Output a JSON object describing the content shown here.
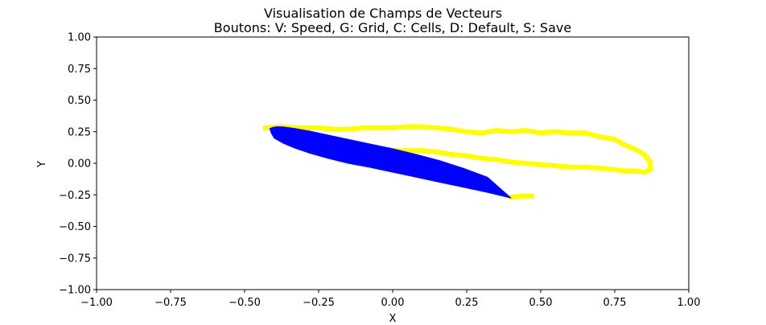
{
  "chart_data": {
    "type": "line",
    "title": "Visualisation de Champs de Vecteurs",
    "subtitle": "Boutons: V: Speed, G: Grid, C: Cells, D: Default, S: Save",
    "xlabel": "X",
    "ylabel": "Y",
    "xlim": [
      -1.0,
      1.0
    ],
    "ylim": [
      -1.0,
      1.0
    ],
    "xticks": [
      -1.0,
      -0.75,
      -0.5,
      -0.25,
      0.0,
      0.25,
      0.5,
      0.75,
      1.0
    ],
    "yticks": [
      -1.0,
      -0.75,
      -0.5,
      -0.25,
      0.0,
      0.25,
      0.5,
      0.75,
      1.0
    ],
    "xtick_labels": [
      "−1.00",
      "−0.75",
      "−0.50",
      "−0.25",
      "0.00",
      "0.25",
      "0.50",
      "0.75",
      "1.00"
    ],
    "ytick_labels": [
      "−1.00",
      "−0.75",
      "−0.50",
      "−0.25",
      "0.00",
      "0.25",
      "0.50",
      "0.75",
      "1.00"
    ],
    "grid": false,
    "series": [
      {
        "kind": "trail",
        "color": "#ffff00",
        "x": [
          -0.43,
          -0.38,
          -0.3,
          -0.25,
          -0.2,
          -0.15,
          -0.1,
          -0.05,
          0.0,
          0.05,
          0.1,
          0.15,
          0.2,
          0.25,
          0.3,
          0.35,
          0.4,
          0.45,
          0.5,
          0.55,
          0.6,
          0.65,
          0.7,
          0.75,
          0.78,
          0.82,
          0.85,
          0.87,
          0.87,
          0.85,
          0.82,
          0.78,
          0.75,
          0.7,
          0.65,
          0.6,
          0.55,
          0.5,
          0.45,
          0.4,
          0.35,
          0.3,
          0.25,
          0.2,
          0.15,
          0.1,
          0.05,
          0.0,
          -0.05,
          -0.08
        ],
        "y": [
          0.28,
          0.29,
          0.28,
          0.28,
          0.27,
          0.27,
          0.28,
          0.28,
          0.28,
          0.29,
          0.29,
          0.28,
          0.27,
          0.25,
          0.24,
          0.26,
          0.25,
          0.26,
          0.24,
          0.25,
          0.24,
          0.24,
          0.21,
          0.19,
          0.15,
          0.11,
          0.07,
          0.01,
          -0.05,
          -0.07,
          -0.06,
          -0.06,
          -0.05,
          -0.04,
          -0.03,
          -0.03,
          -0.02,
          -0.01,
          0.0,
          0.01,
          0.03,
          0.04,
          0.06,
          0.07,
          0.09,
          0.1,
          0.1,
          0.1,
          0.1,
          0.09
        ]
      },
      {
        "kind": "trail",
        "color": "#ffff00",
        "x": [
          0.4,
          0.43,
          0.47
        ],
        "y": [
          -0.27,
          -0.26,
          -0.26
        ]
      },
      {
        "kind": "airfoil",
        "color": "#0000ff",
        "x": [
          -0.415,
          -0.405,
          -0.39,
          -0.37,
          -0.33,
          -0.28,
          -0.22,
          -0.15,
          -0.08,
          0.0,
          0.08,
          0.16,
          0.24,
          0.32,
          0.4,
          0.32,
          0.24,
          0.16,
          0.08,
          0.0,
          -0.08,
          -0.15,
          -0.22,
          -0.28,
          -0.33,
          -0.37,
          -0.4,
          -0.41
        ],
        "y": [
          0.275,
          0.285,
          0.29,
          0.288,
          0.275,
          0.255,
          0.225,
          0.19,
          0.155,
          0.115,
          0.07,
          0.02,
          -0.04,
          -0.11,
          -0.275,
          -0.23,
          -0.19,
          -0.15,
          -0.11,
          -0.07,
          -0.03,
          0.0,
          0.04,
          0.08,
          0.12,
          0.16,
          0.2,
          0.24
        ]
      }
    ]
  }
}
